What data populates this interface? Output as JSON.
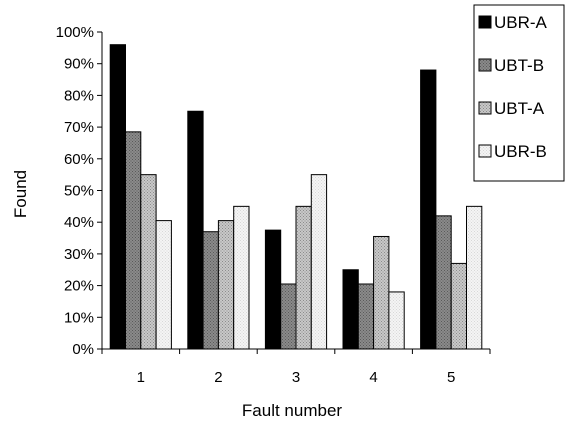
{
  "chart_data": {
    "type": "bar",
    "title": "",
    "xlabel": "Fault number",
    "ylabel": "Found",
    "categories": [
      "1",
      "2",
      "3",
      "4",
      "5"
    ],
    "ylim": [
      0,
      100
    ],
    "yticks": [
      "0%",
      "10%",
      "20%",
      "30%",
      "40%",
      "50%",
      "60%",
      "70%",
      "80%",
      "90%",
      "100%"
    ],
    "grid": false,
    "legend_position": "top-right",
    "series": [
      {
        "name": "UBR-A",
        "values": [
          96,
          75,
          37.5,
          25,
          88
        ],
        "fill": "#000000",
        "pattern": "solid"
      },
      {
        "name": "UBT-B",
        "values": [
          68.5,
          37,
          20.5,
          20.5,
          42
        ],
        "fill": "#808080",
        "pattern": "dots"
      },
      {
        "name": "UBT-A",
        "values": [
          55,
          40.5,
          45,
          35.5,
          27
        ],
        "fill": "#c0c0c0",
        "pattern": "dots"
      },
      {
        "name": "UBR-B",
        "values": [
          40.5,
          45,
          55,
          18,
          45
        ],
        "fill": "#f2f2f2",
        "pattern": "dots"
      }
    ]
  }
}
